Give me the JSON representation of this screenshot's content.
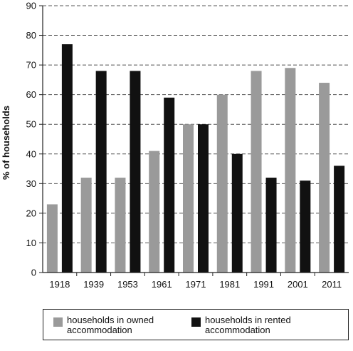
{
  "chart_data": {
    "type": "bar",
    "title": "",
    "xlabel": "",
    "ylabel": "% of households",
    "ylim": [
      0,
      90
    ],
    "yticks": [
      0,
      10,
      20,
      30,
      40,
      50,
      60,
      70,
      80,
      90
    ],
    "grid": true,
    "legend_position": "bottom",
    "categories": [
      "1918",
      "1939",
      "1953",
      "1961",
      "1971",
      "1981",
      "1991",
      "2001",
      "2011"
    ],
    "series": [
      {
        "name": "households in owned\naccommodation",
        "color": "#9a9a9a",
        "values": [
          23,
          32,
          32,
          41,
          50,
          60,
          68,
          69,
          64
        ]
      },
      {
        "name": "households in rented\naccommodation",
        "color": "#111111",
        "values": [
          77,
          68,
          68,
          59,
          50,
          40,
          32,
          31,
          36
        ]
      }
    ]
  }
}
